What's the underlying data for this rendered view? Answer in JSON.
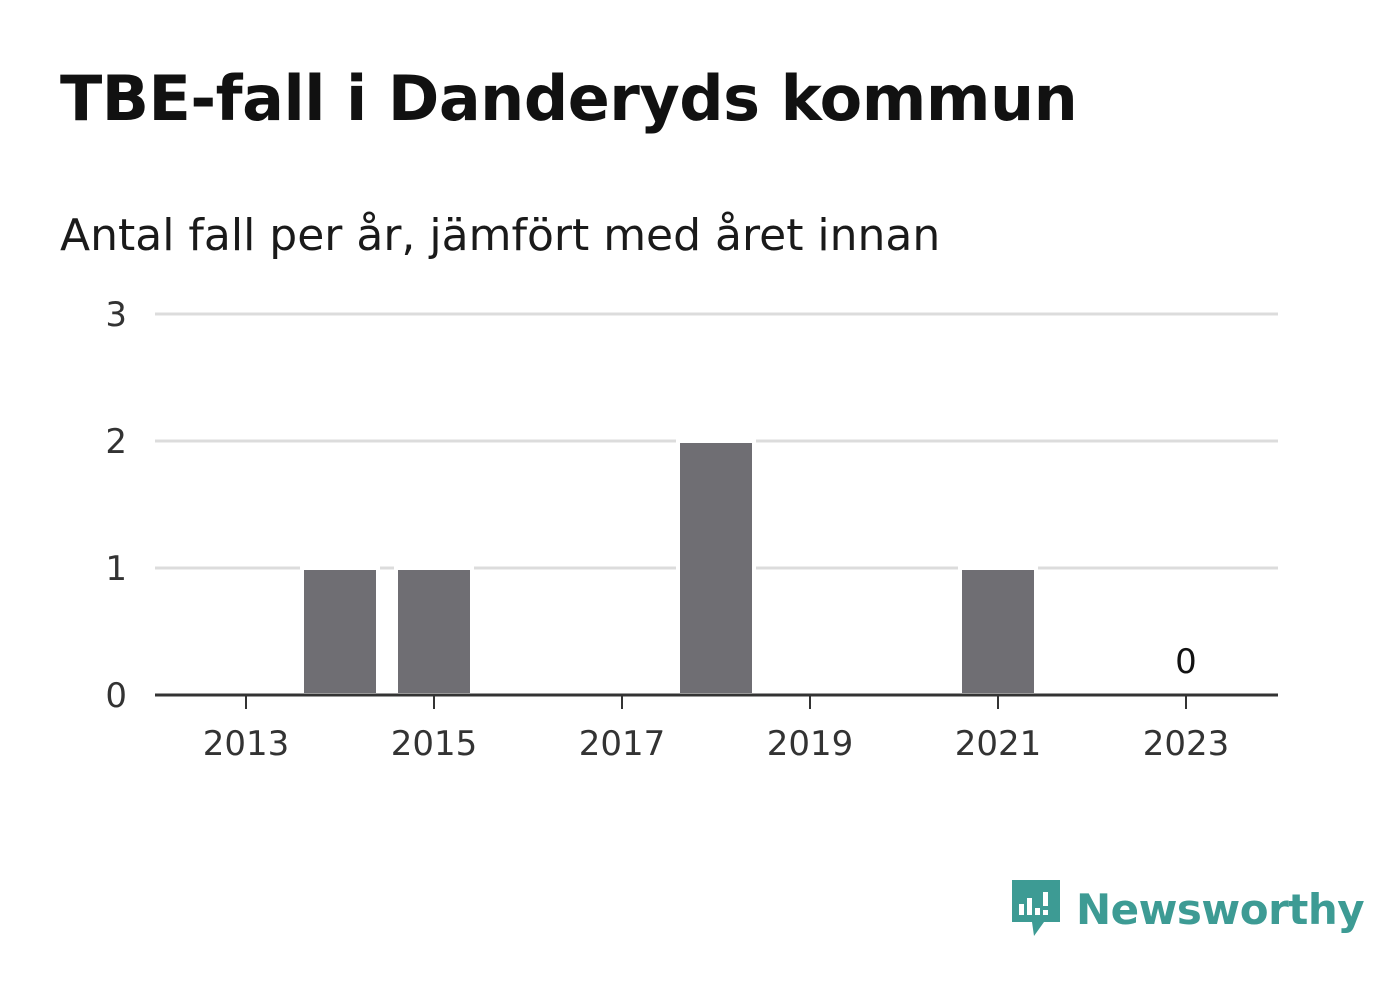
{
  "header": {
    "title": "TBE-fall i Danderyds kommun",
    "subtitle": "Antal fall per år, jämfört med året innan"
  },
  "chart_data": {
    "type": "bar",
    "title": "TBE-fall i Danderyds kommun",
    "subtitle": "Antal fall per år, jämfört med året innan",
    "categories": [
      2013,
      2014,
      2015,
      2016,
      2017,
      2018,
      2019,
      2020,
      2021,
      2022,
      2023
    ],
    "values": [
      0,
      1,
      1,
      0,
      0,
      2,
      0,
      0,
      1,
      0,
      0
    ],
    "x_tick_labels": [
      "2013",
      "2015",
      "2017",
      "2019",
      "2021",
      "2023"
    ],
    "y_ticks": [
      "0",
      "1",
      "2",
      "3"
    ],
    "ylim": [
      0,
      3
    ],
    "grid": true,
    "legend": "none",
    "data_labels": [
      {
        "category": 2023,
        "text": "0"
      }
    ],
    "bar_color": "#6f6e73",
    "grid_color": "#dcdcdc",
    "axis_color": "#333333"
  },
  "branding": {
    "name": "Newsworthy",
    "icon": "newsworthy-logo-icon",
    "color": "#3d9b94"
  }
}
